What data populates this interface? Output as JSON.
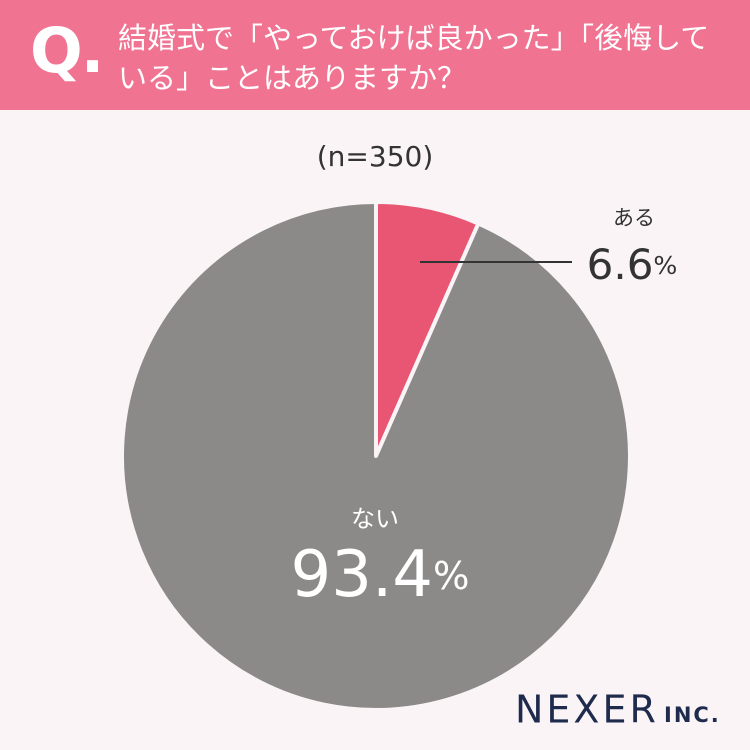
{
  "header": {
    "badge": "Q.",
    "question": "結婚式で「やっておけば良かった」「後悔している」ことはありますか？"
  },
  "chart_data": {
    "type": "pie",
    "subtitle": "(n=350)",
    "categories": [
      "ある",
      "ない"
    ],
    "values": [
      6.6,
      93.4
    ],
    "value_labels": [
      "6.6%",
      "93.4%"
    ],
    "colors": [
      "#e85673",
      "#8b8a89"
    ]
  },
  "footer": {
    "logo": "NEXER",
    "logo_suffix": "INC."
  }
}
